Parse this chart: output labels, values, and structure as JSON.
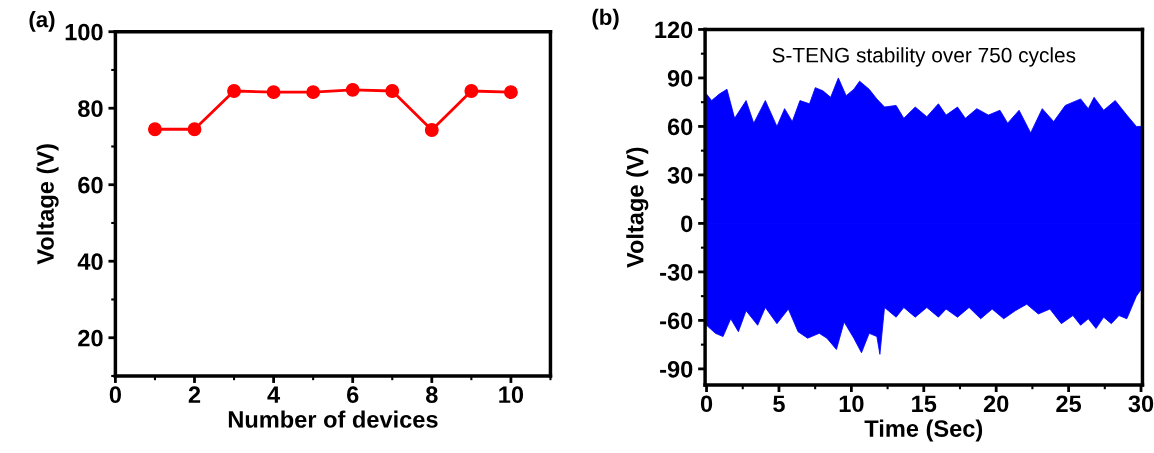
{
  "chart_data": [
    {
      "type": "line",
      "title": "(a)",
      "xlabel": "Number of devices",
      "ylabel": "Voltage (V)",
      "x": [
        1,
        2,
        3,
        4,
        5,
        6,
        7,
        8,
        9,
        10
      ],
      "series": [
        {
          "color": "#ff0000",
          "values": [
            74.5,
            74.5,
            84.5,
            84.2,
            84.2,
            84.8,
            84.5,
            74.3,
            84.5,
            84.2
          ]
        }
      ],
      "marker": "circle",
      "line_style": "solid",
      "xlim": [
        0,
        11
      ],
      "ylim": [
        10,
        100
      ],
      "xticks": [
        0,
        2,
        4,
        6,
        8,
        10
      ],
      "yticks": [
        20,
        40,
        60,
        80,
        100
      ],
      "grid": false,
      "legend": false
    },
    {
      "type": "area",
      "title": "(b)",
      "xlabel": "Time (Sec)",
      "ylabel": "Voltage (V)",
      "annotations": [
        "S-TENG stability over 750 cycles"
      ],
      "series": [
        {
          "color": "#0000ff",
          "x": [
            0,
            0.35,
            0.88,
            1.41,
            1.94,
            2.73,
            3.26,
            4.06,
            4.86,
            5.39,
            5.92,
            6.45,
            7.11,
            7.51,
            8.04,
            8.57,
            9.1,
            9.64,
            10.17,
            10.57,
            11.23,
            11.76,
            12.29,
            13.09,
            13.62,
            14.41,
            15.21,
            16.01,
            16.54,
            17.33,
            17.87,
            18.66,
            19.46,
            20.26,
            20.79,
            21.58,
            22.38,
            23.18,
            23.97,
            24.77,
            25.83,
            26.36,
            26.76,
            27.42,
            28.22,
            29.02,
            29.68,
            30
          ],
          "values": [
            80,
            76,
            80,
            83,
            65,
            76,
            62,
            76,
            60,
            71,
            63,
            76,
            74,
            84,
            82,
            78,
            90,
            79,
            83,
            88,
            83,
            77,
            72,
            73,
            65,
            72,
            66,
            74,
            67,
            72,
            65,
            71,
            67,
            70,
            62,
            70,
            56,
            71,
            63,
            73,
            77,
            71,
            78,
            70,
            76,
            67,
            60,
            60
          ]
        },
        {
          "color": "#0000ff",
          "x": [
            0,
            0.61,
            1.14,
            1.67,
            2.2,
            2.73,
            3.53,
            4.06,
            4.86,
            5.65,
            6.32,
            6.98,
            7.78,
            8.31,
            8.97,
            9.5,
            10.17,
            10.7,
            11.23,
            11.76,
            11.97,
            12.29,
            13.09,
            13.62,
            14.41,
            15.21,
            16.01,
            16.54,
            17.33,
            18.13,
            18.93,
            19.72,
            20.52,
            21.32,
            22.11,
            22.91,
            23.71,
            24.5,
            25.3,
            25.83,
            26.36,
            26.89,
            27.42,
            27.95,
            28.48,
            29.02,
            29.68,
            30
          ],
          "values": [
            -63,
            -68,
            -70,
            -59,
            -67,
            -54,
            -63,
            -52,
            -62,
            -53,
            -67,
            -71,
            -68,
            -71,
            -78,
            -61,
            -71,
            -80,
            -68,
            -70,
            -81,
            -52,
            -58,
            -52,
            -58,
            -52,
            -58,
            -53,
            -58,
            -52,
            -59,
            -53,
            -59,
            -54,
            -50,
            -56,
            -53,
            -62,
            -57,
            -63,
            -59,
            -65,
            -58,
            -62,
            -57,
            -59,
            -45,
            -41
          ]
        }
      ],
      "xlim": [
        -0.1,
        30.1
      ],
      "ylim": [
        -100,
        120
      ],
      "xticks": [
        0,
        5,
        10,
        15,
        20,
        25,
        30
      ],
      "yticks": [
        -90,
        -60,
        -30,
        0,
        30,
        60,
        90,
        120
      ],
      "grid": false,
      "legend": false
    }
  ]
}
